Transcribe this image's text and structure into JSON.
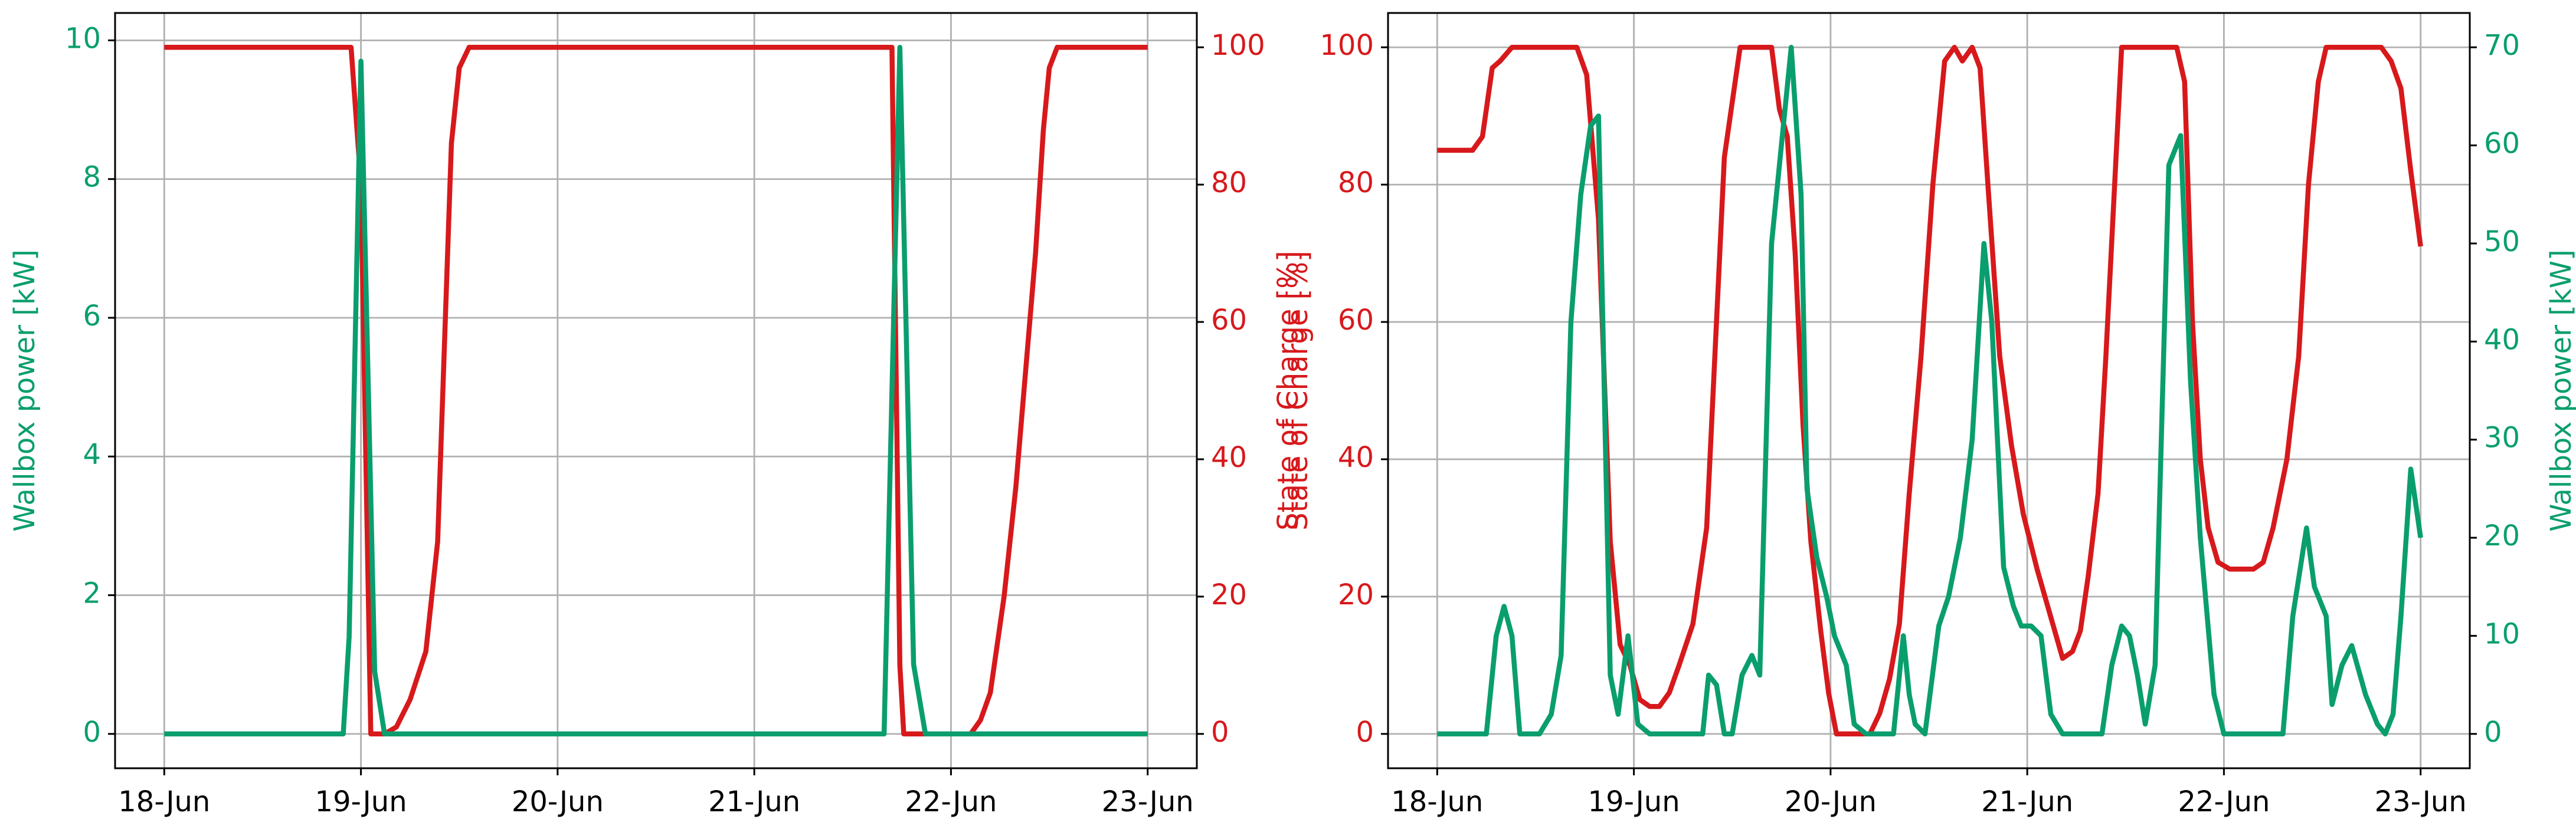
{
  "chart_data": [
    {
      "type": "line",
      "grid": true,
      "ylabel": "Wallbox power [kW]",
      "y2label": "State of Charge [%]",
      "xlim": [
        -0.25,
        5.25
      ],
      "xticks": [
        {
          "value": 0,
          "label": "18-Jun"
        },
        {
          "value": 1,
          "label": "19-Jun"
        },
        {
          "value": 2,
          "label": "20-Jun"
        },
        {
          "value": 3,
          "label": "21-Jun"
        },
        {
          "value": 4,
          "label": "22-Jun"
        },
        {
          "value": 5,
          "label": "23-Jun"
        }
      ],
      "ylim": [
        -0.495,
        10.395
      ],
      "yticks": [
        0,
        2,
        4,
        6,
        8,
        10
      ],
      "y2lim": [
        -5,
        105
      ],
      "y2ticks": [
        0,
        20,
        40,
        60,
        80,
        100
      ],
      "series": [
        {
          "color": "#d7191c",
          "axis": "y2",
          "x": [
            0,
            0.95,
            1.0,
            1.05,
            1.12,
            1.18,
            1.25,
            1.33,
            1.39,
            1.46,
            1.5,
            1.55,
            3.7,
            3.74,
            3.76,
            4.1,
            4.15,
            4.2,
            4.27,
            4.33,
            4.43,
            4.47,
            4.5,
            4.54,
            5
          ],
          "values": [
            100,
            100,
            80,
            0,
            0,
            1,
            5,
            12,
            28,
            86,
            97,
            100,
            100,
            10,
            0,
            0,
            2,
            6,
            20,
            36,
            70,
            88,
            97,
            100,
            100
          ]
        },
        {
          "color": "#0a9e6e",
          "axis": "y",
          "x": [
            0,
            0.91,
            0.94,
            1.0,
            1.07,
            1.12,
            3.66,
            3.74,
            3.81,
            3.87,
            5
          ],
          "values": [
            0,
            0,
            1.4,
            9.7,
            0.9,
            0,
            0,
            9.9,
            1.0,
            0,
            0
          ]
        }
      ]
    },
    {
      "type": "line",
      "grid": true,
      "ylabel": "State of Charge [%]",
      "y2label": "Wallbox power [kW]",
      "xlim": [
        -0.25,
        5.25
      ],
      "xticks": [
        {
          "value": 0,
          "label": "18-Jun"
        },
        {
          "value": 1,
          "label": "19-Jun"
        },
        {
          "value": 2,
          "label": "20-Jun"
        },
        {
          "value": 3,
          "label": "21-Jun"
        },
        {
          "value": 4,
          "label": "22-Jun"
        },
        {
          "value": 5,
          "label": "23-Jun"
        }
      ],
      "ylim": [
        -5,
        105
      ],
      "yticks": [
        0,
        20,
        40,
        60,
        80,
        100
      ],
      "y2lim": [
        -3.5,
        73.5
      ],
      "y2ticks": [
        0,
        10,
        20,
        30,
        40,
        50,
        60,
        70
      ],
      "series": [
        {
          "color": "#d7191c",
          "axis": "y",
          "x": [
            0,
            0.18,
            0.23,
            0.28,
            0.32,
            0.38,
            0.71,
            0.76,
            0.82,
            0.88,
            0.93,
            0.98,
            1.03,
            1.08,
            1.13,
            1.18,
            1.23,
            1.3,
            1.37,
            1.46,
            1.54,
            1.7,
            1.74,
            1.78,
            1.82,
            1.86,
            1.9,
            1.95,
            1.99,
            2.03,
            2.2,
            2.25,
            2.3,
            2.35,
            2.4,
            2.46,
            2.52,
            2.58,
            2.63,
            2.67,
            2.72,
            2.76,
            2.8,
            2.86,
            2.92,
            2.98,
            3.05,
            3.12,
            3.18,
            3.23,
            3.27,
            3.31,
            3.36,
            3.4,
            3.48,
            3.76,
            3.8,
            3.84,
            3.88,
            3.92,
            3.97,
            4.03,
            4.15,
            4.2,
            4.25,
            4.32,
            4.38,
            4.43,
            4.48,
            4.52,
            4.8,
            4.85,
            4.9,
            4.95,
            5.0
          ],
          "values": [
            85,
            85,
            87,
            97,
            98,
            100,
            100,
            96,
            75,
            28,
            13,
            10,
            5,
            4,
            4,
            6,
            10,
            16,
            30,
            84,
            100,
            100,
            91,
            87,
            70,
            45,
            28,
            15,
            6,
            0,
            0,
            3,
            8,
            16,
            35,
            55,
            80,
            98,
            100,
            98,
            100,
            97,
            80,
            55,
            42,
            32,
            24,
            17,
            11,
            12,
            15,
            23,
            35,
            55,
            100,
            100,
            95,
            60,
            40,
            30,
            25,
            24,
            24,
            25,
            30,
            40,
            55,
            80,
            95,
            100,
            100,
            98,
            94,
            82,
            71
          ]
        },
        {
          "color": "#0a9e6e",
          "axis": "y2",
          "x": [
            0,
            0.25,
            0.3,
            0.34,
            0.38,
            0.42,
            0.52,
            0.58,
            0.63,
            0.68,
            0.73,
            0.78,
            0.82,
            0.88,
            0.92,
            0.97,
            1.02,
            1.08,
            1.35,
            1.38,
            1.42,
            1.46,
            1.5,
            1.55,
            1.6,
            1.64,
            1.7,
            1.8,
            1.85,
            1.88,
            1.93,
            1.98,
            2.02,
            2.08,
            2.12,
            2.18,
            2.32,
            2.37,
            2.4,
            2.43,
            2.48,
            2.55,
            2.6,
            2.66,
            2.72,
            2.78,
            2.82,
            2.88,
            2.93,
            2.97,
            3.02,
            3.07,
            3.12,
            3.18,
            3.38,
            3.43,
            3.48,
            3.52,
            3.56,
            3.6,
            3.65,
            3.72,
            3.78,
            3.83,
            3.88,
            3.95,
            4.0,
            4.3,
            4.35,
            4.42,
            4.46,
            4.52,
            4.55,
            4.6,
            4.65,
            4.72,
            4.78,
            4.82,
            4.86,
            4.9,
            4.95,
            5.0
          ],
          "values": [
            0,
            0,
            10,
            13,
            10,
            0,
            0,
            2,
            8,
            42,
            55,
            62,
            63,
            6,
            2,
            10,
            1,
            0,
            0,
            6,
            5,
            0,
            0,
            6,
            8,
            6,
            50,
            70,
            55,
            25,
            18,
            14,
            10,
            7,
            1,
            0,
            0,
            10,
            4,
            1,
            0,
            11,
            14,
            20,
            30,
            50,
            42,
            17,
            13,
            11,
            11,
            10,
            2,
            0,
            0,
            7,
            11,
            10,
            6,
            1,
            7,
            58,
            61,
            36,
            20,
            4,
            0,
            0,
            12,
            21,
            15,
            12,
            3,
            7,
            9,
            4,
            1,
            0,
            2,
            12,
            27,
            20
          ]
        }
      ]
    }
  ]
}
